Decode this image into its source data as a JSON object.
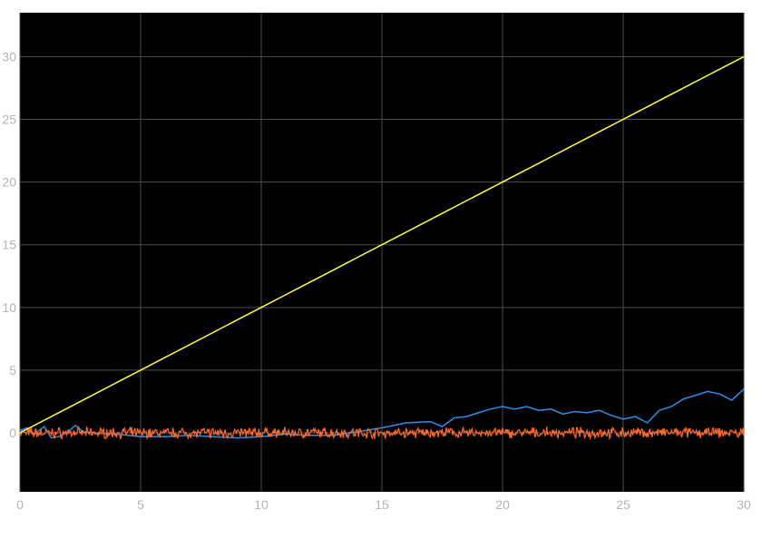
{
  "chart_data": {
    "type": "line",
    "title": "",
    "xlabel": "",
    "ylabel": "",
    "xlim": [
      0,
      30
    ],
    "ylim": [
      -4.7,
      33.5
    ],
    "x_ticks": [
      0,
      5,
      10,
      15,
      20,
      25,
      30
    ],
    "y_ticks": [
      0,
      5,
      10,
      15,
      20,
      25,
      30
    ],
    "x_tick_labels": [
      "0",
      "5",
      "10",
      "15",
      "20",
      "25",
      "30"
    ],
    "y_tick_labels": [
      "0",
      "5",
      "10",
      "15",
      "20",
      "25",
      "30"
    ],
    "grid": true,
    "background": "#000000",
    "grid_color": "#4d4d4d",
    "series": [
      {
        "color": "#ffff33",
        "x": [
          0,
          1,
          2,
          3,
          4,
          5,
          6,
          7,
          8,
          9,
          10,
          11,
          12,
          13,
          14,
          15,
          16,
          17,
          18,
          19,
          20,
          21,
          22,
          23,
          24,
          25,
          26,
          27,
          28,
          29,
          30
        ],
        "values": [
          0,
          1,
          2,
          3,
          4,
          5,
          6,
          7,
          8,
          9,
          10,
          11,
          12,
          13,
          14,
          15,
          16,
          17,
          18,
          19,
          20,
          21,
          22,
          23,
          24,
          25,
          26,
          27,
          28,
          29,
          30
        ]
      },
      {
        "color": "#2b8fe6",
        "x": [
          0,
          0.3,
          0.6,
          1,
          1.3,
          1.6,
          2,
          2.3,
          2.6,
          3,
          4,
          5,
          6,
          7,
          8,
          9,
          10,
          11,
          12,
          13,
          14,
          15,
          16,
          17,
          17.5,
          18,
          18.5,
          19,
          19.5,
          20,
          20.5,
          21,
          21.5,
          22,
          22.5,
          23,
          23.5,
          24,
          24.5,
          25,
          25.5,
          26,
          26.5,
          27,
          27.5,
          28,
          28.5,
          29,
          29.5,
          30
        ],
        "values": [
          0.2,
          0.4,
          -0.1,
          0.5,
          -0.4,
          -0.3,
          0.1,
          0.6,
          0.1,
          0,
          -0.1,
          -0.3,
          -0.3,
          -0.2,
          -0.3,
          -0.4,
          -0.3,
          -0.1,
          -0.2,
          -0.2,
          0.1,
          0.4,
          0.8,
          0.9,
          0.5,
          1.2,
          1.3,
          1.6,
          1.9,
          2.1,
          1.9,
          2.1,
          1.8,
          1.9,
          1.5,
          1.7,
          1.6,
          1.8,
          1.4,
          1.1,
          1.3,
          0.8,
          1.8,
          2.1,
          2.7,
          3.0,
          3.3,
          3.1,
          2.6,
          3.5
        ]
      },
      {
        "color": "#ff6a2b",
        "x_range": [
          0,
          30
        ],
        "center": 0,
        "amplitude": 0.5,
        "samples": 900
      }
    ]
  }
}
